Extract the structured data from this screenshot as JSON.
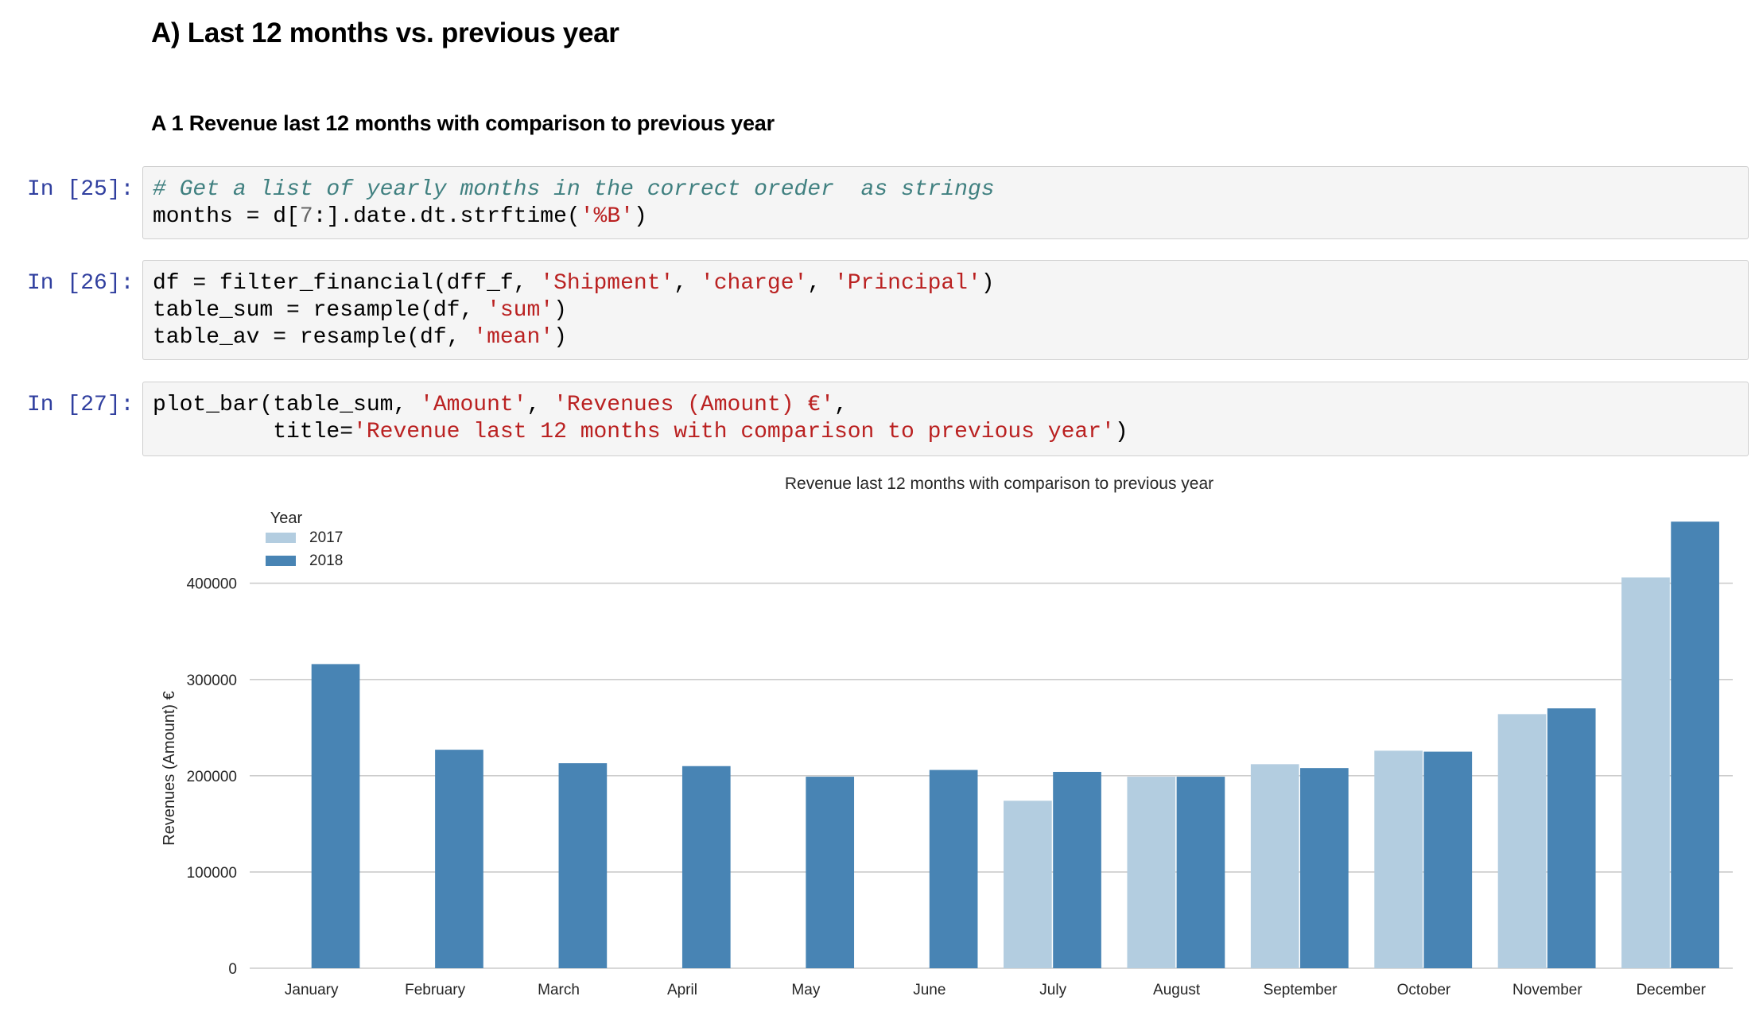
{
  "heading": "A) Last 12 months vs. previous year",
  "subheading": "A 1 Revenue last 12 months with comparison to previous year",
  "cells": [
    {
      "prompt": "In [25]:",
      "lines": [
        [
          {
            "t": "# Get a list of yearly months in the correct oreder  as strings",
            "c": "cm"
          }
        ],
        [
          {
            "t": "months = d[",
            "c": "plain"
          },
          {
            "t": "7",
            "c": "nm"
          },
          {
            "t": ":].date.dt.strftime(",
            "c": "plain"
          },
          {
            "t": "'%B'",
            "c": "st"
          },
          {
            "t": ")",
            "c": "plain"
          }
        ]
      ]
    },
    {
      "prompt": "In [26]:",
      "lines": [
        [
          {
            "t": "df = filter_financial(dff_f, ",
            "c": "plain"
          },
          {
            "t": "'Shipment'",
            "c": "st"
          },
          {
            "t": ", ",
            "c": "plain"
          },
          {
            "t": "'charge'",
            "c": "st"
          },
          {
            "t": ", ",
            "c": "plain"
          },
          {
            "t": "'Principal'",
            "c": "st"
          },
          {
            "t": ")",
            "c": "plain"
          }
        ],
        [
          {
            "t": "table_sum = resample(df, ",
            "c": "plain"
          },
          {
            "t": "'sum'",
            "c": "st"
          },
          {
            "t": ")",
            "c": "plain"
          }
        ],
        [
          {
            "t": "table_av = resample(df, ",
            "c": "plain"
          },
          {
            "t": "'mean'",
            "c": "st"
          },
          {
            "t": ")",
            "c": "plain"
          }
        ]
      ]
    },
    {
      "prompt": "In [27]:",
      "lines": [
        [
          {
            "t": "plot_bar(table_sum, ",
            "c": "plain"
          },
          {
            "t": "'Amount'",
            "c": "st"
          },
          {
            "t": ", ",
            "c": "plain"
          },
          {
            "t": "'Revenues (Amount) €'",
            "c": "st"
          },
          {
            "t": ",",
            "c": "plain"
          }
        ],
        [
          {
            "t": "         title=",
            "c": "plain"
          },
          {
            "t": "'Revenue last 12 months with comparison to previous year'",
            "c": "st"
          },
          {
            "t": ")",
            "c": "plain"
          }
        ]
      ]
    }
  ],
  "chart_data": {
    "type": "bar",
    "title": "Revenue last 12 months with comparison to previous year",
    "xlabel": "",
    "ylabel": "Revenues (Amount) €",
    "ylim": [
      0,
      465000
    ],
    "yticks": [
      0,
      100000,
      200000,
      300000,
      400000
    ],
    "grid": true,
    "legend": {
      "title": "Year",
      "placement": "top-left"
    },
    "categories": [
      "January",
      "February",
      "March",
      "April",
      "May",
      "June",
      "July",
      "August",
      "September",
      "October",
      "November",
      "December"
    ],
    "series": [
      {
        "name": "2017",
        "color": "#b3cde0",
        "values": [
          null,
          null,
          null,
          null,
          null,
          null,
          174000,
          199000,
          212000,
          226000,
          264000,
          406000
        ]
      },
      {
        "name": "2018",
        "color": "#4884b4",
        "values": [
          316000,
          227000,
          213000,
          210000,
          199000,
          206000,
          204000,
          199000,
          208000,
          225000,
          270000,
          464000
        ]
      }
    ]
  }
}
